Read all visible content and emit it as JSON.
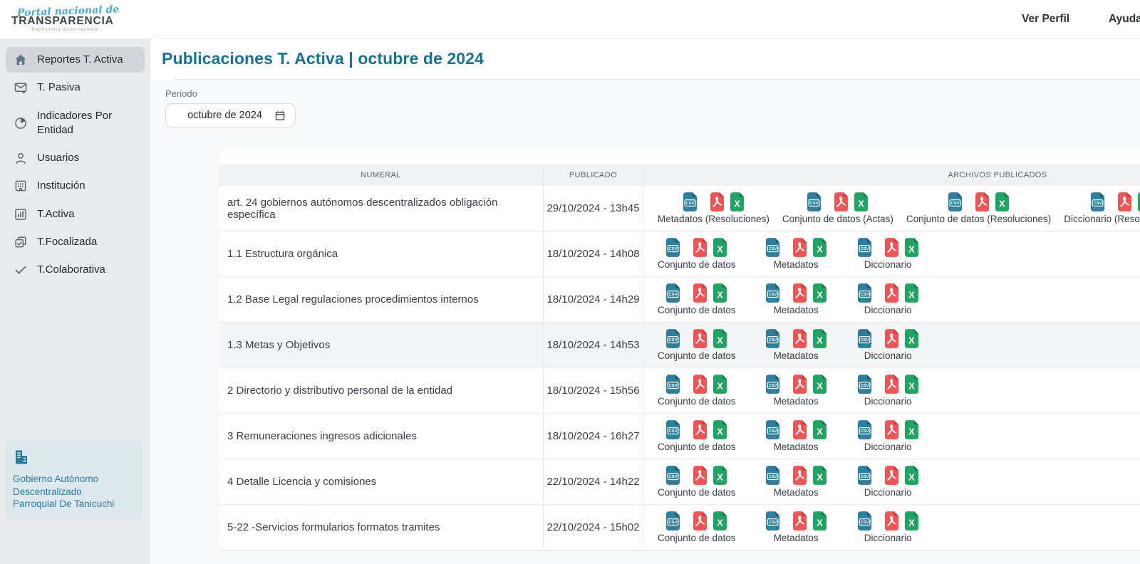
{
  "navbar": {
    "logo": {
      "script": "Portal nacional de",
      "word": "TRANSPARENCIA",
      "tagline": "Repositorio único nacional"
    },
    "links": [
      {
        "label": "Ver Perfil"
      },
      {
        "label": "Ayuda"
      }
    ]
  },
  "sidebar": {
    "items": [
      {
        "label": "Reportes T. Activa",
        "icon": "home",
        "active": true
      },
      {
        "label": "T. Pasiva",
        "icon": "mail-check",
        "active": false
      },
      {
        "label": "Indicadores Por Entidad",
        "icon": "pie-chart",
        "active": false
      },
      {
        "label": "Usuarios",
        "icon": "user",
        "active": false
      },
      {
        "label": "Institución",
        "icon": "institution",
        "active": false
      },
      {
        "label": "T.Activa",
        "icon": "bar-chart",
        "active": false
      },
      {
        "label": "T.Focalizada",
        "icon": "layers-check",
        "active": false
      },
      {
        "label": "T.Colaborativa",
        "icon": "check",
        "active": false
      }
    ],
    "entity": {
      "icon": "building",
      "lines": [
        "Gobierno Autónomo",
        "Descentralizado",
        "Parroquial De Tanicuchi"
      ]
    }
  },
  "main": {
    "title": "Publicaciones T. Activa | octubre de 2024",
    "period": {
      "label": "Periodo",
      "value": "octubre de 2024"
    },
    "table": {
      "columns": [
        "NUMERAL",
        "PUBLICADO",
        "ARCHIVOS PUBLICADOS"
      ],
      "rows": [
        {
          "numeral": "art. 24 gobiernos autónomos descentralizados obligación específica",
          "publicado": "29/10/2024 - 13h45",
          "shaded": false,
          "groups": [
            {
              "label": "Metadatos (Resoluciones)",
              "files": [
                "csv",
                "pdf",
                "xls"
              ]
            },
            {
              "label": "Conjunto de datos (Actas)",
              "files": [
                "csv",
                "pdf",
                "xls"
              ]
            },
            {
              "label": "Conjunto de datos (Resoluciones)",
              "files": [
                "csv",
                "pdf",
                "xls"
              ]
            },
            {
              "label": "Diccionario (Resoluciones)",
              "files": [
                "csv",
                "pdf",
                "xls"
              ]
            }
          ]
        },
        {
          "numeral": "1.1 Estructura orgánica",
          "publicado": "18/10/2024 - 14h08",
          "shaded": false,
          "groups": [
            {
              "label": "Conjunto de datos",
              "files": [
                "csv",
                "pdf",
                "xls"
              ]
            },
            {
              "label": "Metadatos",
              "files": [
                "csv",
                "pdf",
                "xls"
              ]
            },
            {
              "label": "Diccionario",
              "files": [
                "csv",
                "pdf",
                "xls"
              ]
            }
          ]
        },
        {
          "numeral": "1.2 Base Legal regulaciones procedimientos internos",
          "publicado": "18/10/2024 - 14h29",
          "shaded": false,
          "groups": [
            {
              "label": "Conjunto de datos",
              "files": [
                "csv",
                "pdf",
                "xls"
              ]
            },
            {
              "label": "Metadatos",
              "files": [
                "csv",
                "pdf",
                "xls"
              ]
            },
            {
              "label": "Diccionario",
              "files": [
                "csv",
                "pdf",
                "xls"
              ]
            }
          ]
        },
        {
          "numeral": "1.3 Metas y Objetivos",
          "publicado": "18/10/2024 - 14h53",
          "shaded": true,
          "groups": [
            {
              "label": "Conjunto de datos",
              "files": [
                "csv",
                "pdf",
                "xls"
              ]
            },
            {
              "label": "Metadatos",
              "files": [
                "csv",
                "pdf",
                "xls"
              ]
            },
            {
              "label": "Diccionario",
              "files": [
                "csv",
                "pdf",
                "xls"
              ]
            }
          ]
        },
        {
          "numeral": "2 Directorio y distributivo personal de la entidad",
          "publicado": "18/10/2024 - 15h56",
          "shaded": false,
          "groups": [
            {
              "label": "Conjunto de datos",
              "files": [
                "csv",
                "pdf",
                "xls"
              ]
            },
            {
              "label": "Metadatos",
              "files": [
                "csv",
                "pdf",
                "xls"
              ]
            },
            {
              "label": "Diccionario",
              "files": [
                "csv",
                "pdf",
                "xls"
              ]
            }
          ]
        },
        {
          "numeral": "3 Remuneraciones ingresos adicionales",
          "publicado": "18/10/2024 - 16h27",
          "shaded": false,
          "groups": [
            {
              "label": "Conjunto de datos",
              "files": [
                "csv",
                "pdf",
                "xls"
              ]
            },
            {
              "label": "Metadatos",
              "files": [
                "csv",
                "pdf",
                "xls"
              ]
            },
            {
              "label": "Diccionario",
              "files": [
                "csv",
                "pdf",
                "xls"
              ]
            }
          ]
        },
        {
          "numeral": "4 Detalle Licencia y comisiones",
          "publicado": "22/10/2024 - 14h22",
          "shaded": false,
          "groups": [
            {
              "label": "Conjunto de datos",
              "files": [
                "csv",
                "pdf",
                "xls"
              ]
            },
            {
              "label": "Metadatos",
              "files": [
                "csv",
                "pdf",
                "xls"
              ]
            },
            {
              "label": "Diccionario",
              "files": [
                "csv",
                "pdf",
                "xls"
              ]
            }
          ]
        },
        {
          "numeral": "5-22 -Servicios formularios formatos tramites",
          "publicado": "22/10/2024 - 15h02",
          "shaded": false,
          "groups": [
            {
              "label": "Conjunto de datos",
              "files": [
                "csv",
                "pdf",
                "xls"
              ]
            },
            {
              "label": "Metadatos",
              "files": [
                "csv",
                "pdf",
                "xls"
              ]
            },
            {
              "label": "Diccionario",
              "files": [
                "csv",
                "pdf",
                "xls"
              ]
            }
          ]
        }
      ]
    }
  },
  "colors": {
    "accent": "#17718f",
    "csv": "#2e7e9d",
    "csv_fold": "#1d5a73",
    "pdf": "#f05454",
    "pdf_fold": "#c63d3d",
    "xls": "#21a463",
    "xls_fold": "#17794a",
    "sidebar_active_bg": "#d2d5da",
    "entity_card_bg": "#dee8ed"
  }
}
